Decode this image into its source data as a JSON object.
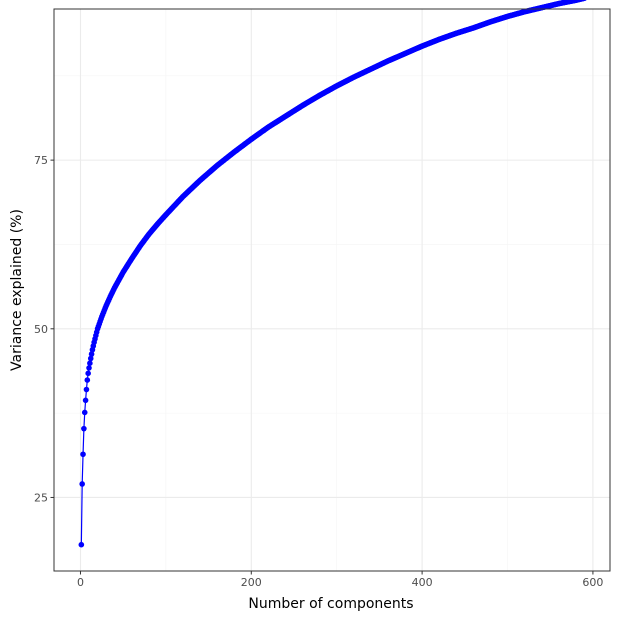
{
  "colors": {
    "series": "#0000ff",
    "panel_border": "#333333",
    "grid_major": "#ebebeb",
    "grid_minor": "#f5f5f5",
    "tick_label": "#4d4d4d"
  },
  "chart_data": {
    "type": "line",
    "title": "",
    "xlabel": "Number of components",
    "ylabel": "Variance explained (%)",
    "xlim": [
      -31,
      620
    ],
    "ylim": [
      14.1,
      97.4
    ],
    "x_ticks": [
      0,
      200,
      400,
      600
    ],
    "x_tick_labels": [
      "0",
      "200",
      "400",
      "600"
    ],
    "y_ticks": [
      25,
      50,
      75
    ],
    "y_tick_labels": [
      "25",
      "50",
      "75"
    ],
    "grid": true,
    "legend": "none",
    "markers": true,
    "series": [
      {
        "x": [
          1,
          2,
          3,
          4,
          5,
          6,
          7,
          8,
          9,
          10,
          12,
          14,
          16,
          18,
          20,
          25,
          30,
          35,
          40,
          50,
          60,
          70,
          80,
          90,
          100,
          120,
          140,
          160,
          180,
          200,
          220,
          240,
          260,
          280,
          300,
          320,
          340,
          360,
          380,
          400,
          420,
          440,
          460,
          480,
          500,
          520,
          540,
          560,
          580,
          590
        ],
        "y": [
          18.0,
          27.0,
          31.4,
          35.2,
          37.6,
          39.4,
          41.0,
          42.4,
          43.4,
          44.2,
          45.6,
          46.9,
          48.0,
          49.0,
          50.0,
          51.8,
          53.4,
          54.8,
          56.1,
          58.4,
          60.4,
          62.3,
          64.0,
          65.5,
          66.9,
          69.6,
          72.0,
          74.2,
          76.2,
          78.1,
          79.9,
          81.5,
          83.1,
          84.6,
          86.0,
          87.3,
          88.5,
          89.7,
          90.8,
          91.9,
          92.9,
          93.8,
          94.6,
          95.5,
          96.3,
          97.0,
          97.6,
          98.2,
          98.7,
          99.0
        ]
      }
    ]
  }
}
